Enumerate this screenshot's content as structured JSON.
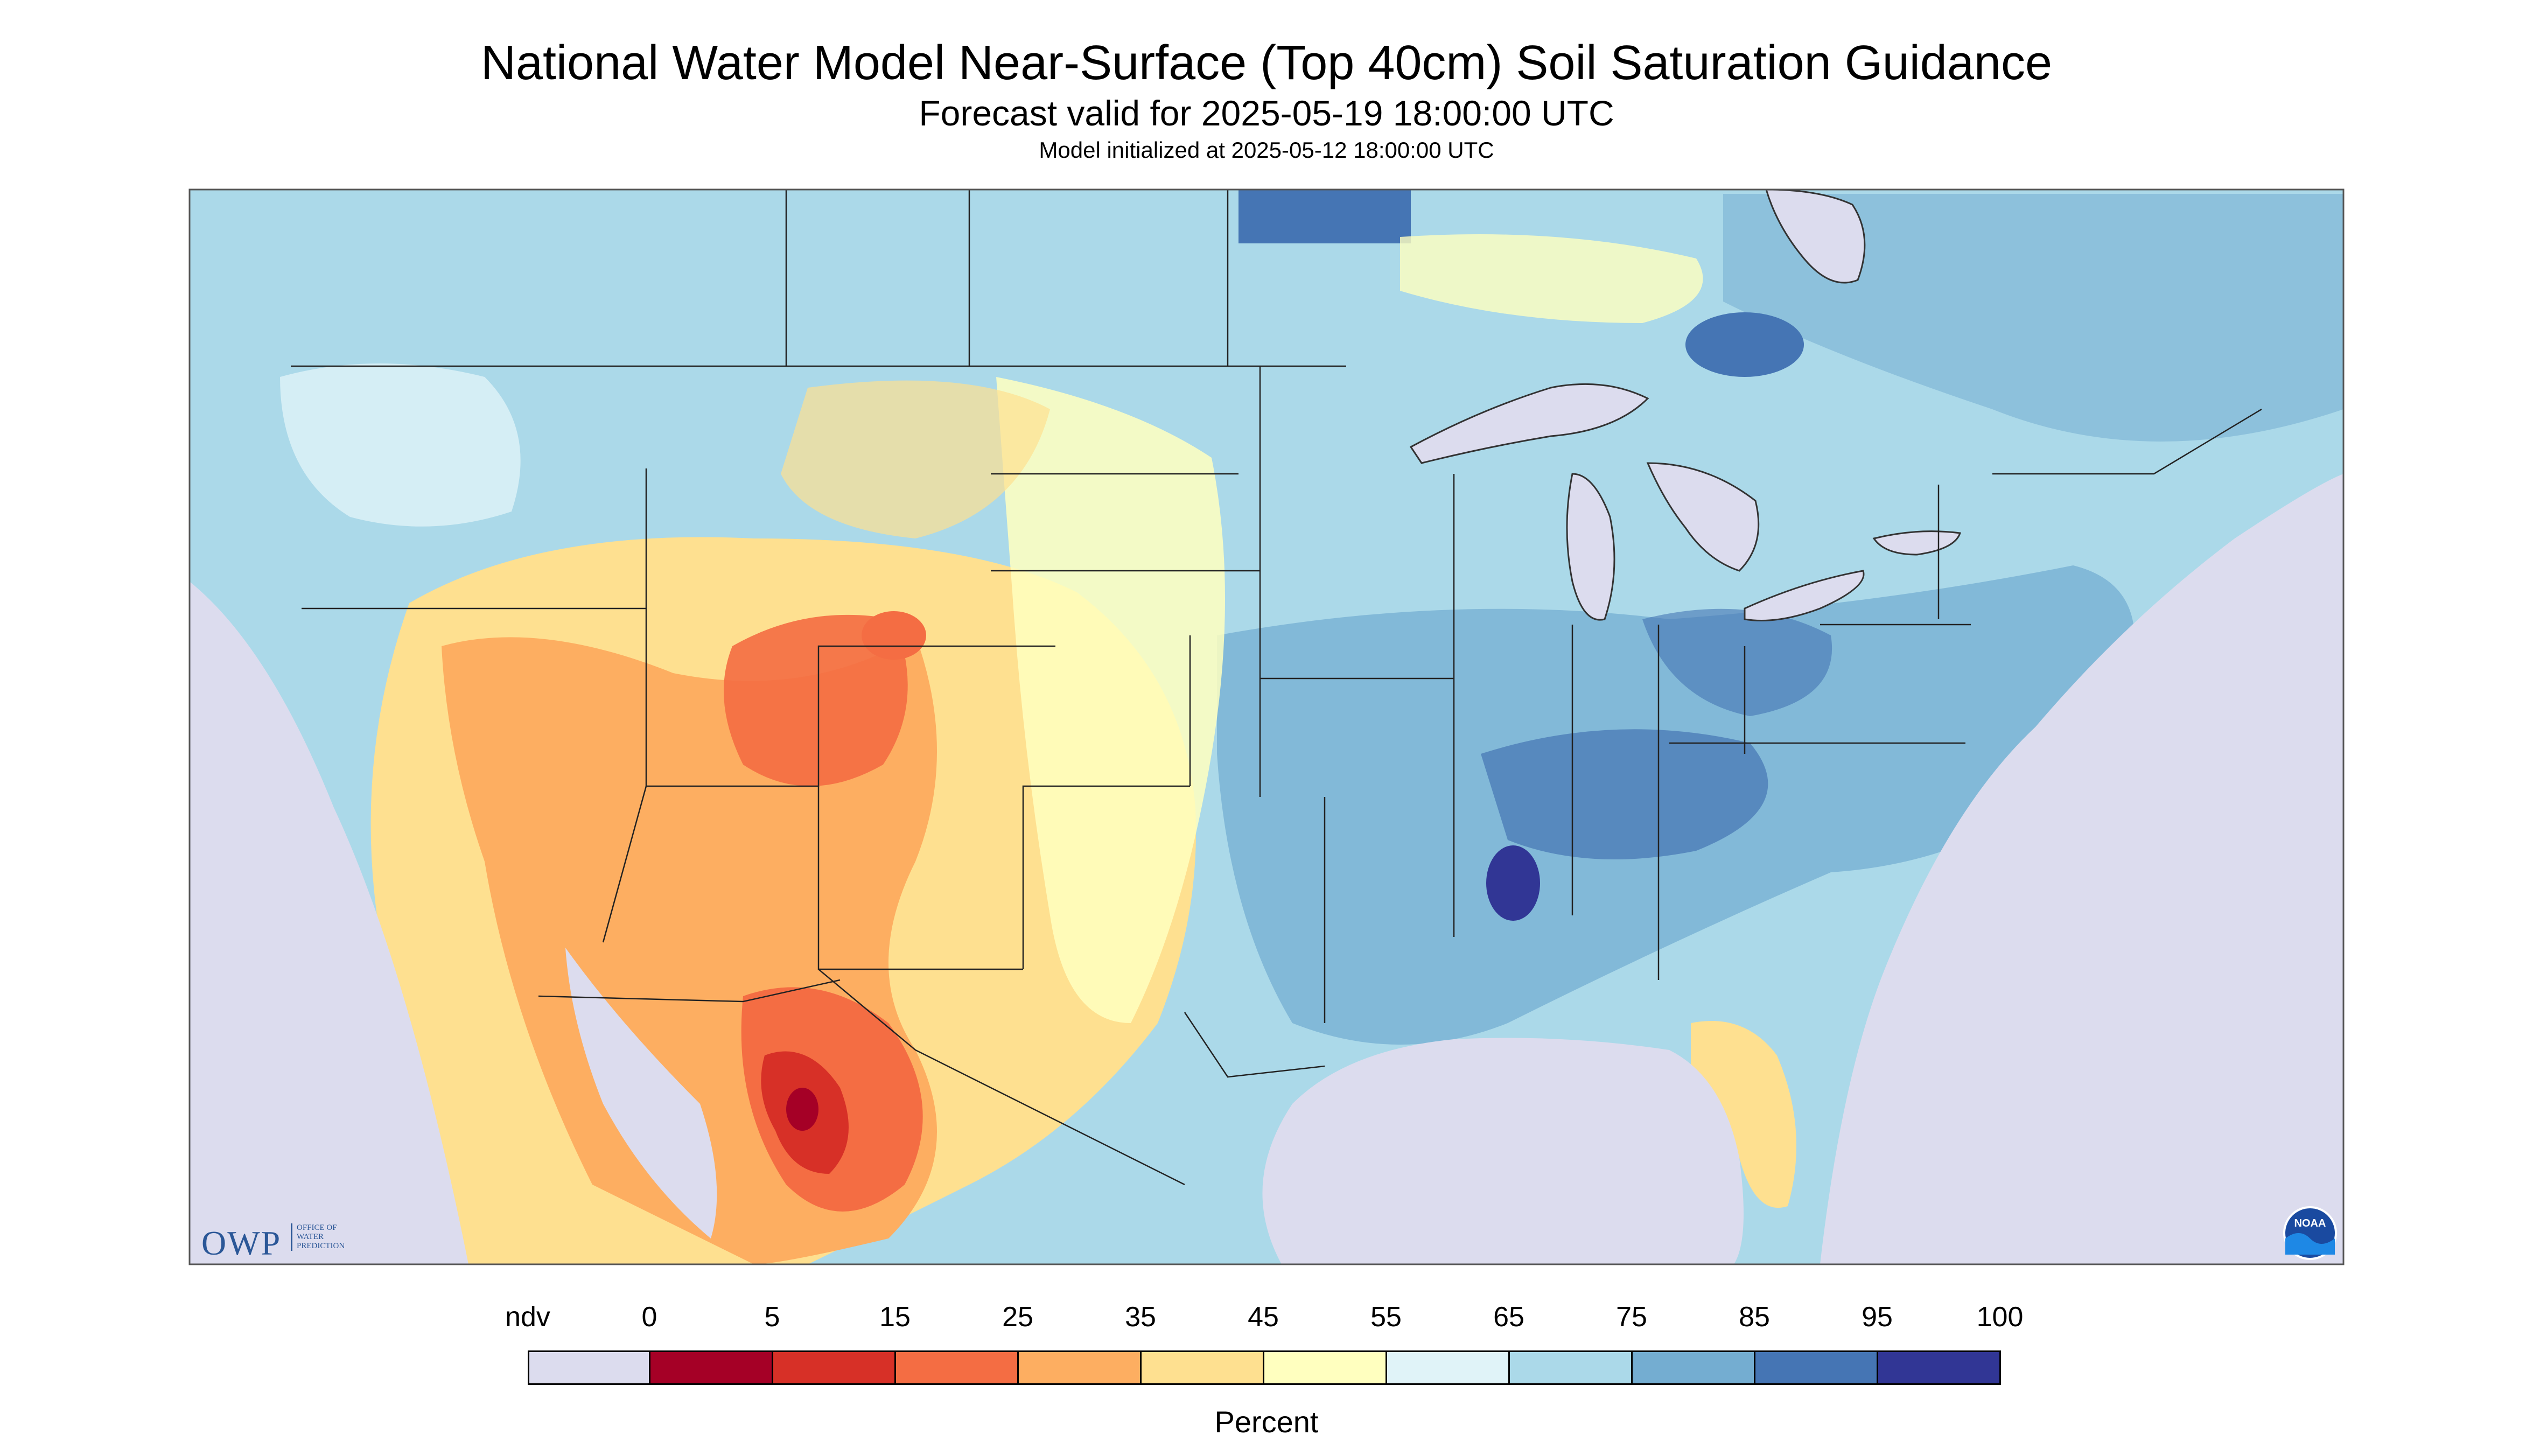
{
  "header": {
    "title": "National Water Model Near-Surface (Top 40cm) Soil Saturation Guidance",
    "forecast_line": "Forecast valid for 2025-05-19 18:00:00 UTC",
    "init_line": "Model initialized at 2025-05-12 18:00:00 UTC"
  },
  "legend": {
    "ndv_label": "ndv",
    "unit": "Percent",
    "tick_labels": [
      "0",
      "5",
      "15",
      "25",
      "35",
      "45",
      "55",
      "65",
      "75",
      "85",
      "95",
      "100"
    ],
    "colors": {
      "ndv": "#dcdcee",
      "c0_5": "#a50026",
      "c5_15": "#d73027",
      "c15_25": "#f46d43",
      "c25_35": "#fdae61",
      "c35_45": "#fee090",
      "c45_55": "#ffffbf",
      "c55_65": "#e0f3f8",
      "c65_75": "#abd9e9",
      "c75_85": "#74add1",
      "c85_95": "#4575b4",
      "c95_100": "#313695"
    }
  },
  "logos": {
    "owp_letters": "OWP",
    "owp_subtitle": "OFFICE OF WATER PREDICTION",
    "noaa": "NOAA"
  },
  "map": {
    "background": "#dcdcee",
    "dominant_field": "#abd9e9"
  }
}
